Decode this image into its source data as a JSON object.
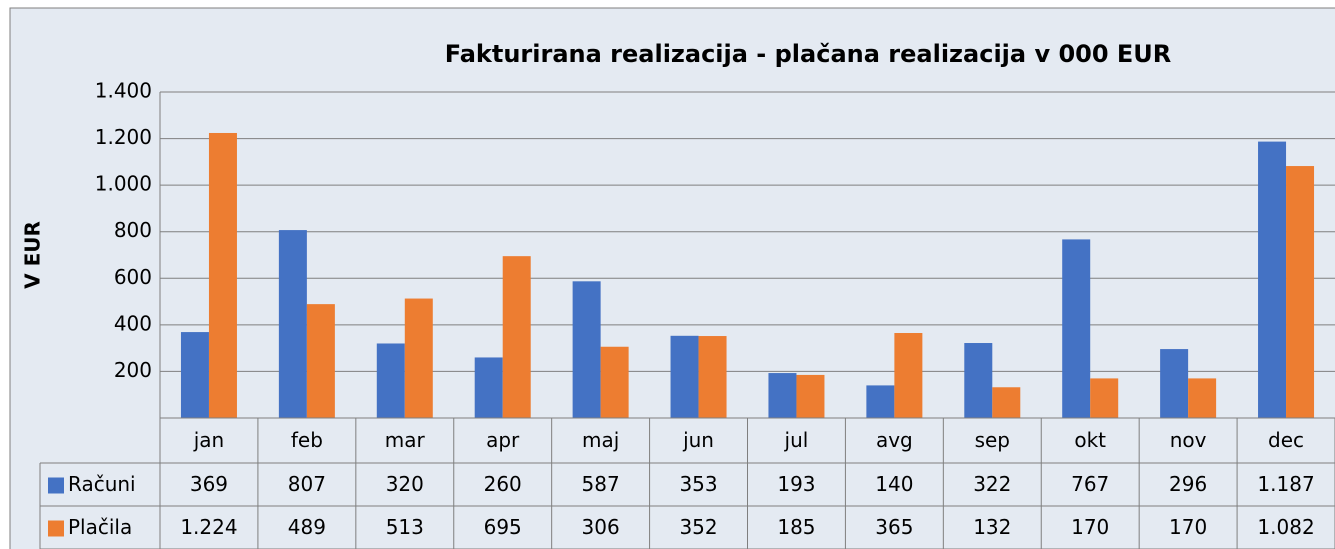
{
  "chart_data": {
    "type": "bar",
    "title": "Fakturirana realizacija - plačana realizacija v 000 EUR",
    "y_label": "V EUR",
    "categories": [
      "jan",
      "feb",
      "mar",
      "apr",
      "maj",
      "jun",
      "jul",
      "avg",
      "sep",
      "okt",
      "nov",
      "dec"
    ],
    "series": [
      {
        "name": "Računi",
        "color": "#4472c4",
        "values": [
          369,
          807,
          320,
          260,
          587,
          353,
          193,
          140,
          322,
          767,
          296,
          1187
        ],
        "value_labels": [
          "369",
          "807",
          "320",
          "260",
          "587",
          "353",
          "193",
          "140",
          "322",
          "767",
          "296",
          "1.187"
        ]
      },
      {
        "name": "Plačila",
        "color": "#ed7d31",
        "values": [
          1224,
          489,
          513,
          695,
          306,
          352,
          185,
          365,
          132,
          170,
          170,
          1082
        ],
        "value_labels": [
          "1.224",
          "489",
          "513",
          "695",
          "306",
          "352",
          "185",
          "365",
          "132",
          "170",
          "170",
          "1.082"
        ]
      }
    ],
    "ylim": [
      0,
      1400
    ],
    "yticks": [
      200,
      400,
      600,
      800,
      {
        "value": 1000,
        "label": "1.000"
      },
      {
        "value": 1200,
        "label": "1.200"
      },
      {
        "value": 1400,
        "label": "1.400"
      }
    ],
    "grid": true,
    "data_table": true
  }
}
